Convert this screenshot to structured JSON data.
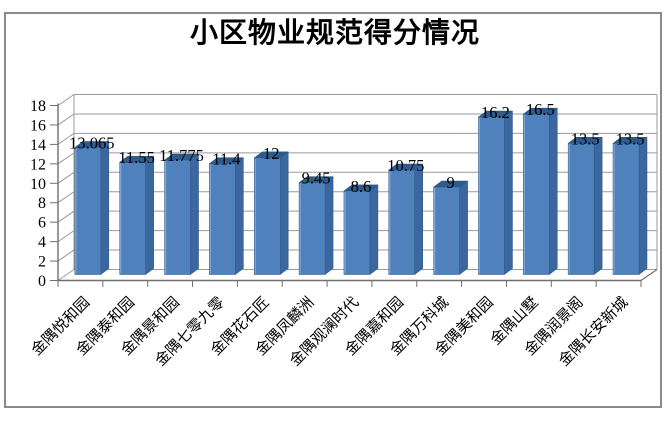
{
  "chart_data": {
    "type": "bar",
    "style": "3d-column",
    "title": "小区物业规范得分情况",
    "categories": [
      "金隅悦和园",
      "金隅泰和园",
      "金隅景和园",
      "金隅七零九零",
      "金隅花石匠",
      "金隅凤麟洲",
      "金隅观澜时代",
      "金隅嘉和园",
      "金隅万科城",
      "金隅美和园",
      "金隅山墅",
      "金隅润景阁",
      "金隅长安新城"
    ],
    "values": [
      13.065,
      11.55,
      11.775,
      11.4,
      12,
      9.45,
      8.6,
      10.75,
      9,
      16.2,
      16.5,
      13.5,
      13.5
    ],
    "data_labels": [
      "13.065",
      "11.55",
      "11.775",
      "11.4",
      "12",
      "9.45",
      "8.6",
      "10.75",
      "9",
      "16.2",
      "16.5",
      "13.5",
      "13.5"
    ],
    "xlabel": "",
    "ylabel": "",
    "ylim": [
      0,
      18
    ],
    "yticks": [
      0,
      2,
      4,
      6,
      8,
      10,
      12,
      14,
      16,
      18
    ],
    "grid": true,
    "legend": false,
    "category_label_rotation_deg": 45,
    "colors": {
      "bar_front": "#4f81bd",
      "bar_side": "#3b67a1",
      "bar_top": "#2d5b8e",
      "bar_highlight": "#7fa5d6",
      "bar_edge": "#2f5380",
      "gridline": "#9b9b9b",
      "axis": "#6f6f6f",
      "frame_border": "#8a8a8a",
      "text": "#000000"
    }
  }
}
